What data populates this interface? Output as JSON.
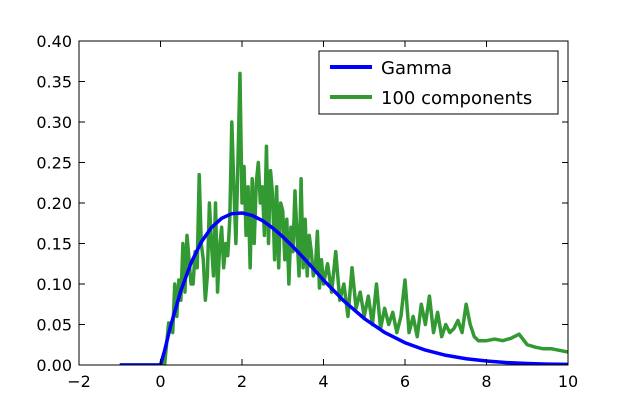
{
  "chart_data": {
    "type": "line",
    "xlim": [
      -2,
      10
    ],
    "ylim": [
      0,
      0.4
    ],
    "xticks": [
      -2,
      0,
      2,
      4,
      6,
      8,
      10
    ],
    "yticks": [
      0.0,
      0.05,
      0.1,
      0.15,
      0.2,
      0.25,
      0.3,
      0.35,
      0.4
    ],
    "xtick_labels": [
      "−2",
      "0",
      "2",
      "4",
      "6",
      "8",
      "10"
    ],
    "ytick_labels": [
      "0.00",
      "0.05",
      "0.10",
      "0.15",
      "0.20",
      "0.25",
      "0.30",
      "0.35",
      "0.40"
    ],
    "grid": false,
    "legend_position": "top-right",
    "series": [
      {
        "name": "Gamma",
        "color": "#0000ff",
        "x": [
          -1.0,
          0.0,
          0.1,
          0.25,
          0.5,
          0.75,
          1.0,
          1.25,
          1.5,
          1.75,
          2.0,
          2.25,
          2.5,
          2.75,
          3.0,
          3.25,
          3.5,
          3.75,
          4.0,
          4.5,
          5.0,
          5.5,
          6.0,
          6.5,
          7.0,
          7.5,
          8.0,
          8.5,
          9.0,
          9.5,
          10.0
        ],
        "y": [
          0.0,
          0.0,
          0.0176,
          0.0486,
          0.0919,
          0.126,
          0.1517,
          0.1697,
          0.1811,
          0.1868,
          0.1877,
          0.1846,
          0.1783,
          0.1693,
          0.1584,
          0.1461,
          0.1328,
          0.119,
          0.1048,
          0.0791,
          0.0574,
          0.0402,
          0.0275,
          0.0184,
          0.012,
          0.0077,
          0.005,
          0.003,
          0.0019,
          0.0011,
          0.0007
        ]
      },
      {
        "name": "100 components",
        "color": "#339933",
        "x": [
          -1.0,
          0.0,
          0.1,
          0.2,
          0.3,
          0.35,
          0.4,
          0.45,
          0.5,
          0.55,
          0.6,
          0.65,
          0.7,
          0.75,
          0.8,
          0.85,
          0.9,
          0.95,
          1.0,
          1.05,
          1.1,
          1.15,
          1.2,
          1.25,
          1.3,
          1.35,
          1.4,
          1.45,
          1.5,
          1.55,
          1.6,
          1.65,
          1.7,
          1.75,
          1.8,
          1.85,
          1.9,
          1.95,
          2.0,
          2.05,
          2.1,
          2.15,
          2.2,
          2.25,
          2.3,
          2.35,
          2.4,
          2.45,
          2.5,
          2.55,
          2.6,
          2.65,
          2.7,
          2.75,
          2.8,
          2.85,
          2.9,
          2.95,
          3.0,
          3.05,
          3.1,
          3.15,
          3.2,
          3.25,
          3.3,
          3.35,
          3.4,
          3.45,
          3.5,
          3.55,
          3.6,
          3.65,
          3.7,
          3.75,
          3.8,
          3.85,
          3.9,
          3.95,
          4.0,
          4.1,
          4.2,
          4.3,
          4.4,
          4.5,
          4.6,
          4.7,
          4.8,
          4.9,
          5.0,
          5.1,
          5.2,
          5.3,
          5.4,
          5.5,
          5.6,
          5.7,
          5.8,
          5.9,
          6.0,
          6.1,
          6.2,
          6.3,
          6.4,
          6.5,
          6.6,
          6.7,
          6.8,
          6.9,
          7.0,
          7.1,
          7.2,
          7.3,
          7.4,
          7.5,
          7.6,
          7.7,
          7.8,
          8.0,
          8.2,
          8.4,
          8.6,
          8.8,
          9.0,
          9.2,
          9.4,
          9.6,
          9.8,
          10.0
        ],
        "y": [
          0.0,
          0.0,
          0.0,
          0.052,
          0.04,
          0.1,
          0.06,
          0.105,
          0.08,
          0.15,
          0.09,
          0.16,
          0.13,
          0.1,
          0.1,
          0.14,
          0.12,
          0.235,
          0.15,
          0.13,
          0.08,
          0.11,
          0.2,
          0.15,
          0.11,
          0.2,
          0.09,
          0.145,
          0.17,
          0.12,
          0.15,
          0.135,
          0.18,
          0.3,
          0.22,
          0.15,
          0.25,
          0.36,
          0.2,
          0.245,
          0.16,
          0.22,
          0.12,
          0.23,
          0.15,
          0.225,
          0.25,
          0.2,
          0.22,
          0.16,
          0.27,
          0.15,
          0.24,
          0.21,
          0.13,
          0.22,
          0.12,
          0.2,
          0.19,
          0.13,
          0.18,
          0.1,
          0.17,
          0.14,
          0.215,
          0.16,
          0.11,
          0.23,
          0.12,
          0.18,
          0.11,
          0.16,
          0.14,
          0.11,
          0.12,
          0.165,
          0.095,
          0.13,
          0.1,
          0.125,
          0.09,
          0.14,
          0.08,
          0.1,
          0.06,
          0.12,
          0.07,
          0.09,
          0.06,
          0.085,
          0.05,
          0.1,
          0.045,
          0.07,
          0.05,
          0.065,
          0.04,
          0.06,
          0.105,
          0.04,
          0.06,
          0.035,
          0.075,
          0.05,
          0.085,
          0.04,
          0.065,
          0.035,
          0.05,
          0.04,
          0.045,
          0.055,
          0.04,
          0.075,
          0.05,
          0.035,
          0.03,
          0.03,
          0.032,
          0.03,
          0.033,
          0.038,
          0.025,
          0.022,
          0.02,
          0.02,
          0.018,
          0.016
        ]
      }
    ]
  }
}
